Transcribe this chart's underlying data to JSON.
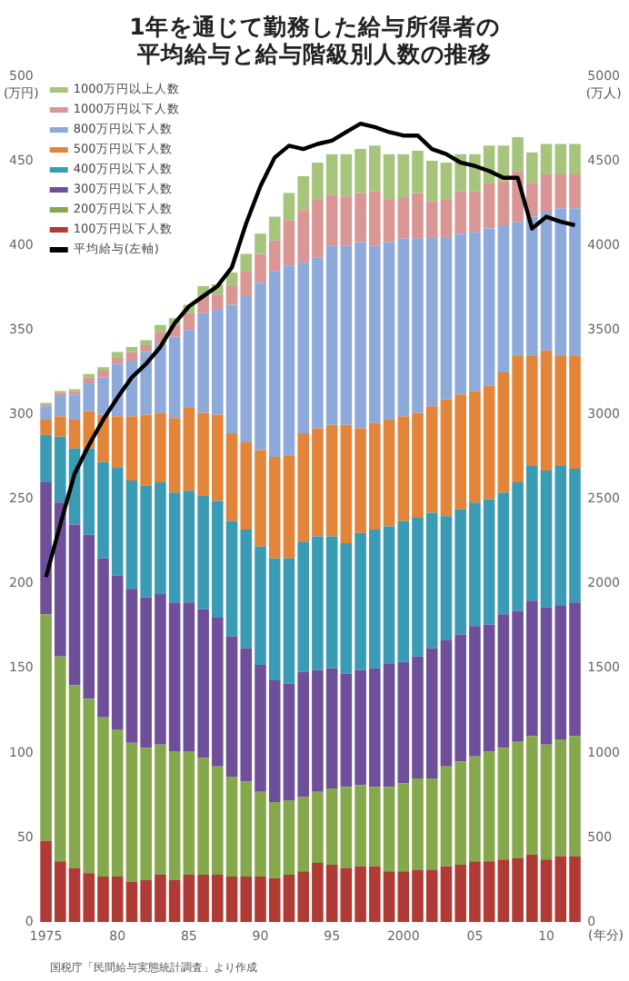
{
  "chart_data": {
    "type": "bar",
    "title": "1年を通じて勤務した給与所得者の平均給与と給与階級別人数の推移",
    "ylabel": "(万円)",
    "y2label": "(万人)",
    "xlabel": "(年分)",
    "categories": [
      "1975",
      null,
      null,
      null,
      null,
      "80",
      null,
      null,
      null,
      null,
      "85",
      null,
      null,
      null,
      null,
      "90",
      null,
      null,
      null,
      null,
      "95",
      null,
      null,
      null,
      null,
      "2000",
      null,
      null,
      null,
      null,
      "05",
      null,
      null,
      null,
      null,
      "10",
      null,
      null
    ],
    "stacked": true,
    "grid": false,
    "legend": "top left",
    "marker": "none",
    "line_style": "solid",
    "ylim": [
      0,
      500
    ],
    "yticks": [
      0,
      50,
      100,
      150,
      200,
      250,
      300,
      350,
      400,
      450,
      500
    ],
    "y2lim": [
      0,
      5000
    ],
    "y2ticks": [
      0,
      500,
      1000,
      1500,
      2000,
      2500,
      3000,
      3500,
      4000,
      4500,
      5000
    ],
    "series": [
      {
        "name": "100万円以下人数",
        "color": "#b03a35",
        "axis": "y2",
        "values": [
          480,
          360,
          320,
          290,
          270,
          270,
          240,
          250,
          280,
          250,
          280,
          280,
          280,
          270,
          270,
          270,
          260,
          280,
          300,
          350,
          340,
          320,
          330,
          330,
          300,
          300,
          310,
          310,
          330,
          340,
          360,
          360,
          370,
          380,
          400,
          370,
          390,
          390
        ]
      },
      {
        "name": "200万円以下人数",
        "color": "#86a84c",
        "axis": "y2",
        "values": [
          1340,
          1210,
          1080,
          1030,
          940,
          870,
          820,
          780,
          770,
          760,
          730,
          690,
          640,
          590,
          560,
          500,
          450,
          440,
          440,
          420,
          450,
          480,
          480,
          470,
          500,
          520,
          540,
          540,
          590,
          610,
          620,
          650,
          660,
          690,
          700,
          680,
          690,
          710
        ]
      },
      {
        "name": "300万円以下人数",
        "color": "#6f4f9a",
        "axis": "y2",
        "values": [
          780,
          910,
          950,
          970,
          940,
          910,
          910,
          890,
          890,
          880,
          880,
          880,
          880,
          830,
          790,
          750,
          720,
          690,
          740,
          720,
          710,
          670,
          680,
          700,
          730,
          720,
          720,
          770,
          750,
          750,
          770,
          750,
          790,
          770,
          800,
          810,
          790,
          790
        ]
      },
      {
        "name": "400万円以下人数",
        "color": "#3a9bb5",
        "axis": "y2",
        "values": [
          280,
          390,
          450,
          510,
          570,
          640,
          640,
          660,
          660,
          650,
          660,
          670,
          690,
          680,
          700,
          700,
          720,
          740,
          770,
          790,
          780,
          770,
          810,
          820,
          810,
          830,
          820,
          800,
          730,
          740,
          730,
          740,
          720,
          760,
          800,
          810,
          830,
          790
        ]
      },
      {
        "name": "500万円以下人数",
        "color": "#e2843a",
        "axis": "y2",
        "values": [
          90,
          120,
          170,
          220,
          280,
          300,
          380,
          420,
          410,
          440,
          490,
          490,
          510,
          520,
          520,
          570,
          600,
          610,
          640,
          640,
          660,
          700,
          620,
          630,
          630,
          620,
          620,
          630,
          690,
          680,
          660,
          670,
          710,
          750,
          650,
          710,
          650,
          670
        ]
      },
      {
        "name": "800万円以下人数",
        "color": "#8eaadb",
        "axis": "y2",
        "values": [
          80,
          120,
          150,
          170,
          220,
          310,
          330,
          370,
          410,
          480,
          460,
          590,
          620,
          760,
          860,
          990,
          1100,
          1120,
          1010,
          1010,
          1060,
          1060,
          1100,
          1050,
          1050,
          1050,
          1030,
          1000,
          960,
          950,
          940,
          930,
          870,
          790,
          820,
          820,
          870,
          870
        ]
      },
      {
        "name": "1000万円以下人数",
        "color": "#d99694",
        "axis": "y2",
        "values": [
          10,
          20,
          20,
          30,
          40,
          40,
          50,
          40,
          70,
          70,
          100,
          100,
          90,
          110,
          150,
          170,
          180,
          270,
          310,
          340,
          300,
          290,
          290,
          320,
          250,
          240,
          270,
          210,
          220,
          250,
          240,
          270,
          260,
          300,
          200,
          220,
          200,
          200
        ]
      },
      {
        "name": "1000万円以上人数",
        "color": "#a6c47c",
        "axis": "y2",
        "values": [
          10,
          10,
          10,
          20,
          20,
          30,
          30,
          30,
          40,
          40,
          50,
          60,
          60,
          80,
          100,
          120,
          140,
          160,
          200,
          220,
          240,
          250,
          260,
          270,
          270,
          260,
          250,
          240,
          220,
          220,
          220,
          220,
          210,
          200,
          180,
          180,
          180,
          180
        ]
      },
      {
        "name": "平均給与(左軸)",
        "type": "line",
        "color": "#000000",
        "axis": "y",
        "values": [
          204,
          235,
          265,
          282,
          297,
          310,
          322,
          330,
          340,
          354,
          364,
          370,
          376,
          387,
          413,
          435,
          452,
          459,
          457,
          460,
          462,
          467,
          472,
          470,
          467,
          465,
          465,
          457,
          454,
          449,
          447,
          444,
          440,
          440,
          410,
          417,
          414,
          412
        ]
      }
    ],
    "annotations": [
      "国税庁「民間給与実態統計調査」より作成"
    ]
  }
}
